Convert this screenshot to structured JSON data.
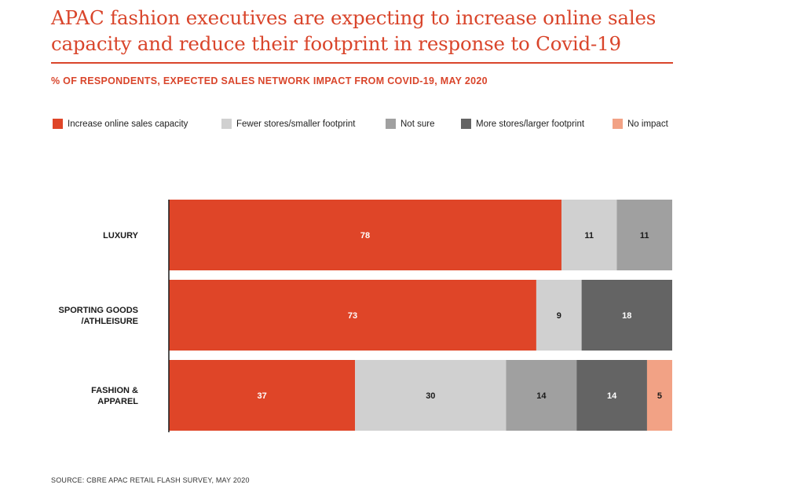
{
  "title": "APAC fashion executives are expecting to increase online sales capacity and reduce their footprint in response to Covid-19",
  "subtitle": "% OF RESPONDENTS, EXPECTED SALES NETWORK IMPACT FROM COVID-19, MAY 2020",
  "source": "SOURCE: CBRE APAC RETAIL FLASH SURVEY, MAY 2020",
  "chart_data": {
    "type": "bar",
    "orientation": "horizontal",
    "stacked": true,
    "title": "APAC fashion executives are expecting to increase online sales capacity and reduce their footprint in response to Covid-19",
    "subtitle": "% OF RESPONDENTS, EXPECTED SALES NETWORK IMPACT FROM COVID-19, MAY 2020",
    "categories": [
      [
        "LUXURY"
      ],
      [
        "SPORTING GOODS",
        "/ATHLEISURE"
      ],
      [
        "FASHION &",
        "APPAREL"
      ]
    ],
    "series": [
      {
        "name": "Increase online sales capacity",
        "color": "#df4528",
        "label_color": "#ffffff",
        "values": [
          78,
          73,
          37
        ]
      },
      {
        "name": "Fewer stores/smaller footprint",
        "color": "#d0d0d0",
        "label_color": "#1a1a1a",
        "values": [
          11,
          9,
          30
        ]
      },
      {
        "name": "Not sure",
        "color": "#a0a0a0",
        "label_color": "#1a1a1a",
        "values": [
          11,
          0,
          14
        ]
      },
      {
        "name": "More stores/larger footprint",
        "color": "#646464",
        "label_color": "#ffffff",
        "values": [
          0,
          18,
          14
        ]
      },
      {
        "name": "No impact",
        "color": "#f2a285",
        "label_color": "#1a1a1a",
        "values": [
          0,
          0,
          5
        ]
      }
    ],
    "xlim": [
      0,
      100
    ],
    "grid": false,
    "legend_position": "top"
  }
}
